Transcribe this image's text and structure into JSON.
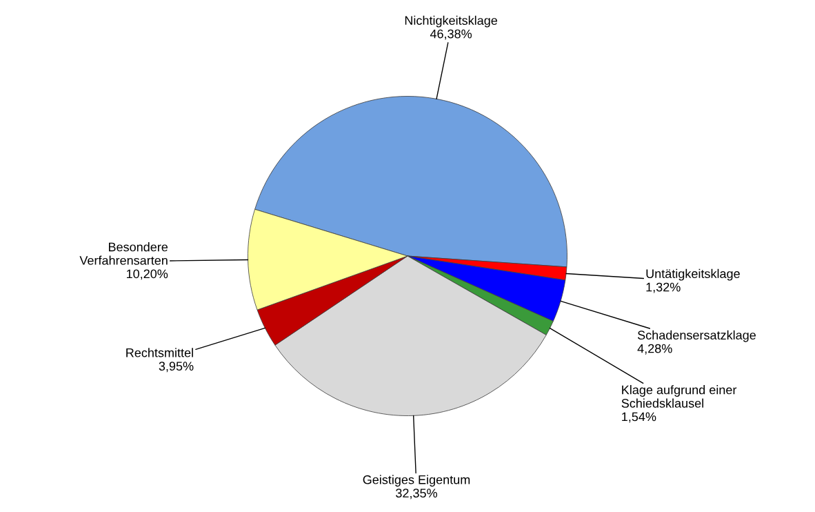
{
  "chart_data": {
    "type": "pie",
    "categories": [
      "Nichtigkeitsklage",
      "Untätigkeitsklage",
      "Schadensersatzklage",
      "Klage aufgrund einer Schiedsklausel",
      "Geistiges Eigentum",
      "Rechtsmittel",
      "Besondere Verfahrensarten"
    ],
    "values": [
      46.38,
      1.32,
      4.28,
      1.54,
      32.35,
      3.95,
      10.2
    ],
    "value_labels": [
      "46,38%",
      "1,32%",
      "4,28%",
      "1,54%",
      "32,35%",
      "3,95%",
      "10,20%"
    ],
    "colors": [
      "#6fa0e0",
      "#ff0000",
      "#0000ff",
      "#3a9a3a",
      "#d9d9d9",
      "#c00000",
      "#ffff99"
    ],
    "legend": false
  }
}
